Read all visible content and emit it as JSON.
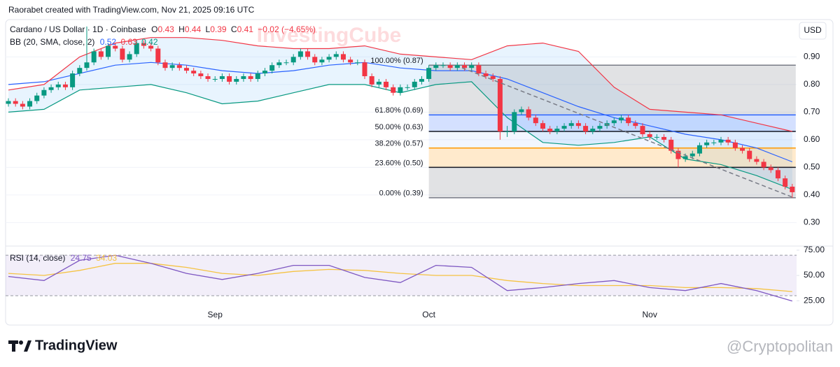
{
  "header": {
    "attribution": "Raorabet created with TradingView.com, Nov 21, 2025 09:16 UTC",
    "currency": "USD",
    "brand": "TradingView",
    "watermark": "InvestingCube",
    "credit": "@Cryptopolitan"
  },
  "chart_data": [
    {
      "type": "candlestick",
      "title": "Cardano / US Dollar · 1D · Coinbase",
      "quote_letters": [
        "O",
        "H",
        "L",
        "C"
      ],
      "change": "−0.02 (−4.65%)",
      "up_color": "#089981",
      "down_color": "#f23645",
      "grid": true,
      "ylim": [
        0.22,
        1.03
      ],
      "yticks": [
        {
          "value": 0.9,
          "label": "0.90"
        },
        {
          "value": 0.8,
          "label": "0.80"
        },
        {
          "value": 0.7,
          "label": "0.70"
        },
        {
          "value": 0.6,
          "label": "0.60"
        },
        {
          "value": 0.5,
          "label": "0.50"
        },
        {
          "value": 0.4,
          "label": "0.40"
        },
        {
          "value": 0.3,
          "label": "0.30"
        }
      ],
      "categories": [
        null,
        null,
        null,
        null,
        null,
        null,
        null,
        null,
        null,
        null,
        null,
        null,
        null,
        null,
        null,
        null,
        null,
        null,
        null,
        null,
        null,
        null,
        null,
        null,
        null,
        null,
        null,
        null,
        null,
        "Sep",
        null,
        null,
        null,
        null,
        null,
        null,
        null,
        null,
        null,
        null,
        null,
        null,
        null,
        null,
        null,
        null,
        null,
        null,
        null,
        null,
        null,
        null,
        null,
        null,
        null,
        null,
        null,
        null,
        null,
        "Oct",
        null,
        null,
        null,
        null,
        null,
        null,
        null,
        null,
        null,
        null,
        null,
        null,
        null,
        null,
        null,
        null,
        null,
        null,
        null,
        null,
        null,
        null,
        null,
        null,
        null,
        null,
        null,
        null,
        null,
        null,
        "Nov",
        null,
        null,
        null,
        null,
        null,
        null,
        null,
        null,
        null,
        null,
        null,
        null,
        null,
        null,
        null,
        null,
        null,
        null,
        null,
        null
      ],
      "open": [
        0.73,
        0.74,
        0.73,
        0.72,
        0.74,
        0.76,
        0.78,
        0.79,
        0.8,
        0.79,
        0.84,
        0.86,
        0.88,
        0.92,
        0.9,
        0.94,
        0.93,
        0.89,
        0.91,
        0.95,
        0.94,
        0.93,
        0.88,
        0.86,
        0.87,
        0.86,
        0.85,
        0.84,
        0.83,
        0.82,
        0.82,
        0.83,
        0.81,
        0.82,
        0.83,
        0.82,
        0.84,
        0.85,
        0.87,
        0.88,
        0.88,
        0.9,
        0.92,
        0.9,
        0.88,
        0.89,
        0.9,
        0.91,
        0.89,
        0.88,
        0.88,
        0.83,
        0.8,
        0.81,
        0.79,
        0.77,
        0.79,
        0.79,
        0.81,
        0.82,
        0.86,
        0.87,
        0.87,
        0.86,
        0.87,
        0.86,
        0.87,
        0.84,
        0.83,
        0.82,
        0.63,
        0.63,
        0.7,
        0.71,
        0.68,
        0.66,
        0.64,
        0.63,
        0.64,
        0.65,
        0.66,
        0.65,
        0.63,
        0.64,
        0.65,
        0.66,
        0.67,
        0.68,
        0.66,
        0.65,
        0.62,
        0.61,
        0.61,
        0.6,
        0.56,
        0.53,
        0.54,
        0.55,
        0.58,
        0.59,
        0.59,
        0.6,
        0.59,
        0.57,
        0.56,
        0.53,
        0.52,
        0.5,
        0.49,
        0.46,
        0.43
      ],
      "high": [
        0.75,
        0.75,
        0.74,
        0.75,
        0.77,
        0.79,
        0.8,
        0.81,
        0.81,
        0.85,
        0.87,
        1.01,
        0.93,
        0.93,
        0.95,
        0.95,
        0.94,
        0.92,
        0.96,
        0.96,
        0.95,
        0.94,
        0.89,
        0.88,
        0.88,
        0.87,
        0.86,
        0.85,
        0.84,
        0.83,
        0.84,
        0.84,
        0.83,
        0.84,
        0.84,
        0.85,
        0.86,
        0.88,
        0.89,
        0.89,
        0.91,
        0.93,
        0.93,
        0.91,
        0.9,
        0.91,
        0.92,
        0.92,
        0.9,
        0.89,
        0.89,
        0.84,
        0.82,
        0.82,
        0.8,
        0.8,
        0.8,
        0.82,
        0.83,
        0.87,
        0.88,
        0.88,
        0.88,
        0.88,
        0.88,
        0.88,
        0.88,
        0.85,
        0.84,
        0.83,
        0.65,
        0.71,
        0.72,
        0.72,
        0.69,
        0.67,
        0.65,
        0.65,
        0.66,
        0.67,
        0.67,
        0.66,
        0.65,
        0.66,
        0.67,
        0.68,
        0.69,
        0.69,
        0.67,
        0.66,
        0.63,
        0.62,
        0.62,
        0.61,
        0.57,
        0.55,
        0.56,
        0.59,
        0.6,
        0.6,
        0.61,
        0.61,
        0.6,
        0.58,
        0.57,
        0.54,
        0.53,
        0.51,
        0.5,
        0.47,
        0.44
      ],
      "low": [
        0.72,
        0.72,
        0.71,
        0.71,
        0.73,
        0.75,
        0.77,
        0.78,
        0.78,
        0.78,
        0.83,
        0.85,
        0.87,
        0.89,
        0.89,
        0.92,
        0.88,
        0.88,
        0.9,
        0.93,
        0.92,
        0.87,
        0.85,
        0.85,
        0.85,
        0.84,
        0.83,
        0.82,
        0.81,
        0.81,
        0.81,
        0.8,
        0.8,
        0.81,
        0.81,
        0.81,
        0.83,
        0.84,
        0.86,
        0.87,
        0.87,
        0.89,
        0.89,
        0.87,
        0.87,
        0.88,
        0.89,
        0.88,
        0.87,
        0.87,
        0.82,
        0.79,
        0.79,
        0.78,
        0.76,
        0.76,
        0.78,
        0.78,
        0.8,
        0.81,
        0.85,
        0.86,
        0.85,
        0.85,
        0.85,
        0.85,
        0.83,
        0.82,
        0.81,
        0.6,
        0.61,
        0.62,
        0.69,
        0.67,
        0.65,
        0.63,
        0.62,
        0.62,
        0.63,
        0.64,
        0.64,
        0.62,
        0.62,
        0.63,
        0.64,
        0.65,
        0.66,
        0.65,
        0.64,
        0.61,
        0.6,
        0.6,
        0.59,
        0.55,
        0.5,
        0.52,
        0.53,
        0.54,
        0.57,
        0.58,
        0.58,
        0.58,
        0.56,
        0.55,
        0.52,
        0.51,
        0.49,
        0.48,
        0.45,
        0.42,
        0.39
      ],
      "close": [
        0.74,
        0.73,
        0.72,
        0.74,
        0.76,
        0.78,
        0.79,
        0.8,
        0.79,
        0.84,
        0.86,
        0.88,
        0.92,
        0.9,
        0.94,
        0.93,
        0.89,
        0.91,
        0.95,
        0.94,
        0.93,
        0.88,
        0.86,
        0.87,
        0.86,
        0.85,
        0.84,
        0.83,
        0.82,
        0.82,
        0.83,
        0.81,
        0.82,
        0.83,
        0.82,
        0.84,
        0.85,
        0.87,
        0.88,
        0.88,
        0.9,
        0.92,
        0.9,
        0.88,
        0.89,
        0.9,
        0.91,
        0.89,
        0.88,
        0.88,
        0.83,
        0.8,
        0.81,
        0.79,
        0.77,
        0.79,
        0.79,
        0.81,
        0.82,
        0.86,
        0.87,
        0.87,
        0.86,
        0.87,
        0.86,
        0.87,
        0.84,
        0.83,
        0.82,
        0.63,
        0.63,
        0.7,
        0.71,
        0.68,
        0.66,
        0.64,
        0.63,
        0.64,
        0.65,
        0.66,
        0.65,
        0.63,
        0.64,
        0.65,
        0.66,
        0.67,
        0.68,
        0.66,
        0.65,
        0.62,
        0.61,
        0.61,
        0.6,
        0.56,
        0.53,
        0.54,
        0.55,
        0.58,
        0.59,
        0.59,
        0.6,
        0.59,
        0.57,
        0.56,
        0.53,
        0.52,
        0.5,
        0.49,
        0.46,
        0.43,
        0.41
      ],
      "bb": {
        "title": "BB (20, SMA, close, 2)",
        "fill": "rgba(33,150,243,0.10)",
        "x": [
          0,
          5,
          10,
          15,
          20,
          25,
          30,
          35,
          40,
          45,
          50,
          55,
          60,
          65,
          70,
          75,
          80,
          85,
          90,
          95,
          100,
          105,
          110
        ],
        "series": [
          {
            "color": "#2962ff",
            "values": [
              0.8,
              0.81,
              0.84,
              0.87,
              0.88,
              0.87,
              0.85,
              0.84,
              0.85,
              0.87,
              0.88,
              0.86,
              0.85,
              0.85,
              0.82,
              0.77,
              0.72,
              0.68,
              0.65,
              0.62,
              0.6,
              0.57,
              0.52
            ]
          },
          {
            "color": "#f23645",
            "values": [
              0.78,
              0.8,
              0.9,
              0.95,
              0.97,
              0.97,
              0.96,
              0.94,
              0.93,
              0.93,
              0.94,
              0.91,
              0.9,
              0.89,
              0.94,
              0.95,
              0.92,
              0.79,
              0.71,
              0.7,
              0.69,
              0.66,
              0.63
            ]
          },
          {
            "color": "#089981",
            "values": [
              0.7,
              0.71,
              0.78,
              0.79,
              0.8,
              0.77,
              0.73,
              0.74,
              0.77,
              0.8,
              0.8,
              0.77,
              0.8,
              0.81,
              0.68,
              0.59,
              0.58,
              0.59,
              0.61,
              0.53,
              0.51,
              0.47,
              0.42
            ]
          }
        ]
      },
      "fib": {
        "x": [
          59,
          110
        ],
        "levels": [
          {
            "value": 0.87,
            "label": "100.00% (0.87)",
            "color": "#787b86"
          },
          {
            "value": 0.69,
            "label": "61.80% (0.69)",
            "color": "#2962ff"
          },
          {
            "value": 0.63,
            "label": "50.00% (0.63)",
            "color": "#131722"
          },
          {
            "value": 0.57,
            "label": "38.20% (0.57)",
            "color": "#ff9800"
          },
          {
            "value": 0.5,
            "label": "23.60% (0.50)",
            "color": "#131722"
          },
          {
            "value": 0.39,
            "label": "0.00% (0.39)",
            "color": "#787b86"
          }
        ],
        "zone_colors": [
          "rgba(120,123,134,0.22)",
          "rgba(41,98,255,0.20)",
          "rgba(41,98,255,0.06)",
          "rgba(255,152,0,0.20)",
          "rgba(120,123,134,0.22)"
        ]
      }
    },
    {
      "type": "line",
      "title": "RSI (14, close)",
      "ylim": [
        3,
        77
      ],
      "yticks": [
        {
          "value": 75,
          "label": "75.00"
        },
        {
          "value": 50,
          "label": "50.00"
        },
        {
          "value": 25,
          "label": "25.00"
        }
      ],
      "bands": [
        70,
        30
      ],
      "band_fill": "rgba(126,87,194,0.10)",
      "x": [
        0,
        5,
        10,
        15,
        20,
        25,
        30,
        35,
        40,
        45,
        50,
        55,
        60,
        65,
        70,
        75,
        80,
        85,
        90,
        95,
        100,
        105,
        110
      ],
      "series": [
        {
          "color": "#7e57c2",
          "values": [
            49,
            45,
            65,
            70,
            62,
            52,
            46,
            52,
            60,
            60,
            48,
            43,
            60,
            58,
            35,
            38,
            42,
            45,
            38,
            35,
            42,
            35,
            24.75
          ]
        },
        {
          "color": "#f5c343",
          "values": [
            52,
            50,
            55,
            62,
            62,
            58,
            52,
            50,
            54,
            56,
            55,
            52,
            50,
            50,
            45,
            42,
            40,
            40,
            40,
            38,
            38,
            37,
            34.03
          ]
        }
      ]
    }
  ]
}
